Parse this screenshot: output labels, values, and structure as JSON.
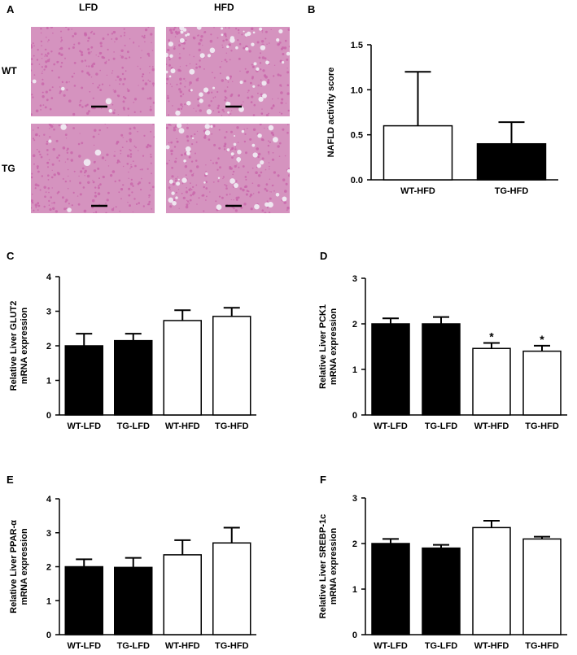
{
  "panel_letters": [
    "A",
    "B",
    "C",
    "D",
    "E",
    "F"
  ],
  "histology": {
    "col_labels": [
      "LFD",
      "HFD"
    ],
    "row_labels": [
      "WT",
      "TG"
    ],
    "tissue_color": "#c865aa",
    "background_color": "#d593bf",
    "vacuole_color": "#efe6f0",
    "scale_bar_color": "#000000"
  },
  "chart_data": [
    {
      "panel": "B",
      "type": "bar",
      "title": "",
      "ylabel_lines": [
        "NAFLD activity score"
      ],
      "xlabel": "",
      "categories": [
        "WT-HFD",
        "TG-HFD"
      ],
      "values": [
        0.6,
        0.4
      ],
      "errors": [
        0.6,
        0.24
      ],
      "fills": [
        "white",
        "black"
      ],
      "ylim": [
        0,
        1.5
      ],
      "yticks": [
        0.0,
        0.5,
        1.0,
        1.5
      ],
      "ytick_labels": [
        "0.0",
        "0.5",
        "1.0",
        "1.5"
      ],
      "annotations": [
        "",
        ""
      ],
      "grid": false
    },
    {
      "panel": "C",
      "type": "bar",
      "title": "",
      "ylabel_lines": [
        "Relative Liver GLUT2",
        "mRNA expression"
      ],
      "xlabel": "",
      "categories": [
        "WT-LFD",
        "TG-LFD",
        "WT-HFD",
        "TG-HFD"
      ],
      "values": [
        2.0,
        2.15,
        2.73,
        2.85
      ],
      "errors": [
        0.35,
        0.2,
        0.3,
        0.25
      ],
      "fills": [
        "black",
        "black",
        "white",
        "white"
      ],
      "ylim": [
        0,
        4
      ],
      "yticks": [
        0,
        1,
        2,
        3,
        4
      ],
      "ytick_labels": [
        "0",
        "1",
        "2",
        "3",
        "4"
      ],
      "annotations": [
        "",
        "",
        "",
        ""
      ],
      "grid": false
    },
    {
      "panel": "D",
      "type": "bar",
      "title": "",
      "ylabel_lines": [
        "Relative Liver PCK1",
        "mRNA expression"
      ],
      "xlabel": "",
      "categories": [
        "WT-LFD",
        "TG-LFD",
        "WT-HFD",
        "TG-HFD"
      ],
      "values": [
        2.0,
        2.0,
        1.46,
        1.4
      ],
      "errors": [
        0.12,
        0.15,
        0.12,
        0.12
      ],
      "fills": [
        "black",
        "black",
        "white",
        "white"
      ],
      "ylim": [
        0,
        3
      ],
      "yticks": [
        0,
        1,
        2,
        3
      ],
      "ytick_labels": [
        "0",
        "1",
        "2",
        "3"
      ],
      "annotations": [
        "",
        "",
        "*",
        "*"
      ],
      "grid": false
    },
    {
      "panel": "E",
      "type": "bar",
      "title": "",
      "ylabel_lines": [
        "Relative Liver PPAR-α",
        "mRNA expression"
      ],
      "xlabel": "",
      "categories": [
        "WT-LFD",
        "TG-LFD",
        "WT-HFD",
        "TG-HFD"
      ],
      "values": [
        2.0,
        1.98,
        2.35,
        2.7
      ],
      "errors": [
        0.22,
        0.28,
        0.43,
        0.45
      ],
      "fills": [
        "black",
        "black",
        "white",
        "white"
      ],
      "ylim": [
        0,
        4
      ],
      "yticks": [
        0,
        1,
        2,
        3,
        4
      ],
      "ytick_labels": [
        "0",
        "1",
        "2",
        "3",
        "4"
      ],
      "annotations": [
        "",
        "",
        "",
        ""
      ],
      "grid": false
    },
    {
      "panel": "F",
      "type": "bar",
      "title": "",
      "ylabel_lines": [
        "Relative Liver SREBP-1c",
        "mRNA expression"
      ],
      "xlabel": "",
      "categories": [
        "WT-LFD",
        "TG-LFD",
        "WT-HFD",
        "TG-HFD"
      ],
      "values": [
        2.0,
        1.9,
        2.35,
        2.1
      ],
      "errors": [
        0.1,
        0.07,
        0.15,
        0.05
      ],
      "fills": [
        "black",
        "black",
        "white",
        "white"
      ],
      "ylim": [
        0,
        3
      ],
      "yticks": [
        0,
        1,
        2,
        3
      ],
      "ytick_labels": [
        "0",
        "1",
        "2",
        "3"
      ],
      "annotations": [
        "",
        "",
        "",
        ""
      ],
      "grid": false
    }
  ]
}
